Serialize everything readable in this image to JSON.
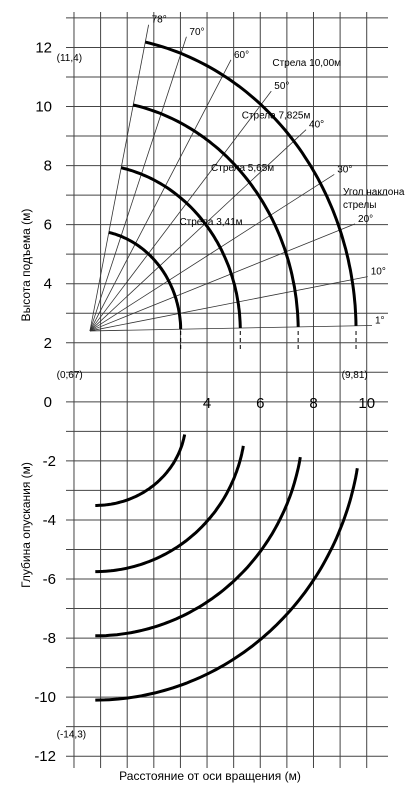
{
  "chart_data": {
    "type": "line",
    "x_axis": {
      "label": "Расстояние от оси вращения (м)",
      "ticks": [
        "4",
        "6",
        "8",
        "10"
      ],
      "range": [
        -1.3,
        10.8
      ]
    },
    "y_axis_upper": {
      "label": "Высота подъема (м)",
      "ticks": [
        "0",
        "2",
        "4",
        "6",
        "8",
        "10",
        "12"
      ]
    },
    "y_axis_lower": {
      "label": "Глубина опускания (м)",
      "ticks": [
        "-2",
        "-4",
        "-6",
        "-8",
        "-10",
        "-12"
      ]
    },
    "y_range": [
      -12.4,
      13.2
    ],
    "grid": true,
    "angle_title": "Угол наклона стрелы",
    "angles": [
      {
        "label": "78°",
        "deg": 78
      },
      {
        "label": "70°",
        "deg": 70
      },
      {
        "label": "60°",
        "deg": 60
      },
      {
        "label": "50°",
        "deg": 50
      },
      {
        "label": "40°",
        "deg": 40
      },
      {
        "label": "30°",
        "deg": 30
      },
      {
        "label": "20°",
        "deg": 20
      },
      {
        "label": "10°",
        "deg": 10
      },
      {
        "label": "1°",
        "deg": 1
      }
    ],
    "series": [
      {
        "name": "Стрела 10,00м",
        "boom_length": 10.0
      },
      {
        "name": "Стрела 7,825м",
        "boom_length": 7.825
      },
      {
        "name": "Стрела 5,65м",
        "boom_length": 5.65
      },
      {
        "name": "Стрела 3,41м",
        "boom_length": 3.41
      }
    ],
    "lower_series": [
      {
        "boom_length": 10.0
      },
      {
        "boom_length": 7.825
      },
      {
        "boom_length": 5.65
      },
      {
        "boom_length": 3.41
      }
    ],
    "annotations": [
      {
        "text": "(11,4)",
        "x": -0.9,
        "y": 11.4
      },
      {
        "text": "(0,67)",
        "x": -0.9,
        "y": 0.67
      },
      {
        "text": "(9,81)",
        "x": 9.81,
        "y": 0.67
      },
      {
        "text": "(-14,3)",
        "x": -0.9,
        "y": -11.5
      }
    ]
  }
}
